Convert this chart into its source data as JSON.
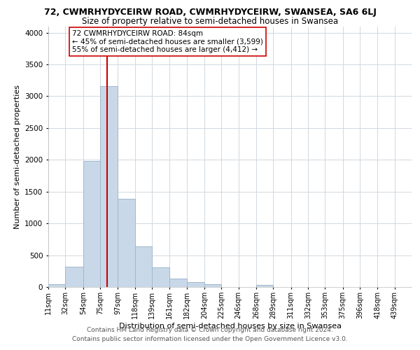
{
  "title": "72, CWMRHYDYCEIRW ROAD, CWMRHYDYCEIRW, SWANSEA, SA6 6LJ",
  "subtitle": "Size of property relative to semi-detached houses in Swansea",
  "xlabel": "Distribution of semi-detached houses by size in Swansea",
  "ylabel": "Number of semi-detached properties",
  "bar_left_edges": [
    11,
    32,
    54,
    75,
    97,
    118,
    139,
    161,
    182,
    204,
    225,
    246,
    268,
    289,
    311,
    332,
    353,
    375,
    396,
    418
  ],
  "bar_widths": [
    21,
    22,
    21,
    22,
    21,
    21,
    22,
    21,
    22,
    21,
    21,
    22,
    21,
    22,
    21,
    21,
    22,
    21,
    22,
    21
  ],
  "bar_heights": [
    40,
    320,
    1980,
    3160,
    1390,
    640,
    305,
    130,
    75,
    40,
    0,
    0,
    30,
    0,
    0,
    0,
    0,
    0,
    0,
    0
  ],
  "bar_color": "#c8d8e8",
  "bar_edgecolor": "#a0b8cc",
  "tick_labels": [
    "11sqm",
    "32sqm",
    "54sqm",
    "75sqm",
    "97sqm",
    "118sqm",
    "139sqm",
    "161sqm",
    "182sqm",
    "204sqm",
    "225sqm",
    "246sqm",
    "268sqm",
    "289sqm",
    "311sqm",
    "332sqm",
    "353sqm",
    "375sqm",
    "396sqm",
    "418sqm",
    "439sqm"
  ],
  "vline_x": 84,
  "vline_color": "#cc0000",
  "annotation_title": "72 CWMRHYDYCEIRW ROAD: 84sqm",
  "annotation_line2": "← 45% of semi-detached houses are smaller (3,599)",
  "annotation_line3": "55% of semi-detached houses are larger (4,412) →",
  "annotation_box_edgecolor": "#cc0000",
  "ylim": [
    0,
    4100
  ],
  "yticks": [
    0,
    500,
    1000,
    1500,
    2000,
    2500,
    3000,
    3500,
    4000
  ],
  "footer1": "Contains HM Land Registry data © Crown copyright and database right 2024.",
  "footer2": "Contains public sector information licensed under the Open Government Licence v3.0.",
  "bg_color": "#ffffff",
  "grid_color": "#d0d8e0",
  "title_fontsize": 9,
  "subtitle_fontsize": 8.5,
  "axis_label_fontsize": 8,
  "tick_fontsize": 7,
  "annotation_fontsize": 7.5,
  "footer_fontsize": 6.5
}
